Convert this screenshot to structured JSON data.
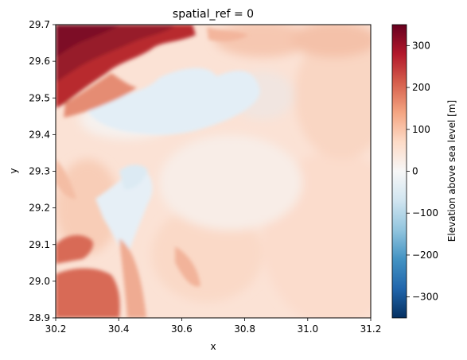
{
  "chart_data": {
    "type": "heatmap",
    "title": "spatial_ref = 0",
    "xlabel": "x",
    "ylabel": "y",
    "xlim": [
      30.2,
      31.2
    ],
    "ylim": [
      28.9,
      29.7
    ],
    "xticks": [
      "30.2",
      "30.4",
      "30.6",
      "30.8",
      "31.0",
      "31.2"
    ],
    "yticks": [
      "28.9",
      "29.0",
      "29.1",
      "29.2",
      "29.3",
      "29.4",
      "29.5",
      "29.6",
      "29.7"
    ],
    "colorbar": {
      "label": "Elevation above sea level [m]",
      "range": [
        -350,
        350
      ],
      "ticks": [
        "300",
        "200",
        "100",
        "0",
        "−100",
        "−200",
        "−300"
      ],
      "colormap": "RdBu_r"
    },
    "features": [
      {
        "description": "high elevation plateau",
        "x_range": [
          30.2,
          30.63
        ],
        "y_range": [
          29.5,
          29.7
        ],
        "value": 300
      },
      {
        "description": "depression basin",
        "x_range": [
          30.28,
          30.72
        ],
        "y_range": [
          29.38,
          29.6
        ],
        "value": -10
      },
      {
        "description": "low channel",
        "x_range": [
          30.38,
          30.5
        ],
        "y_range": [
          29.05,
          29.3
        ],
        "value": -15
      },
      {
        "description": "raised southwest area",
        "x_range": [
          30.2,
          30.45
        ],
        "y_range": [
          28.9,
          29.15
        ],
        "value": 180
      }
    ]
  }
}
